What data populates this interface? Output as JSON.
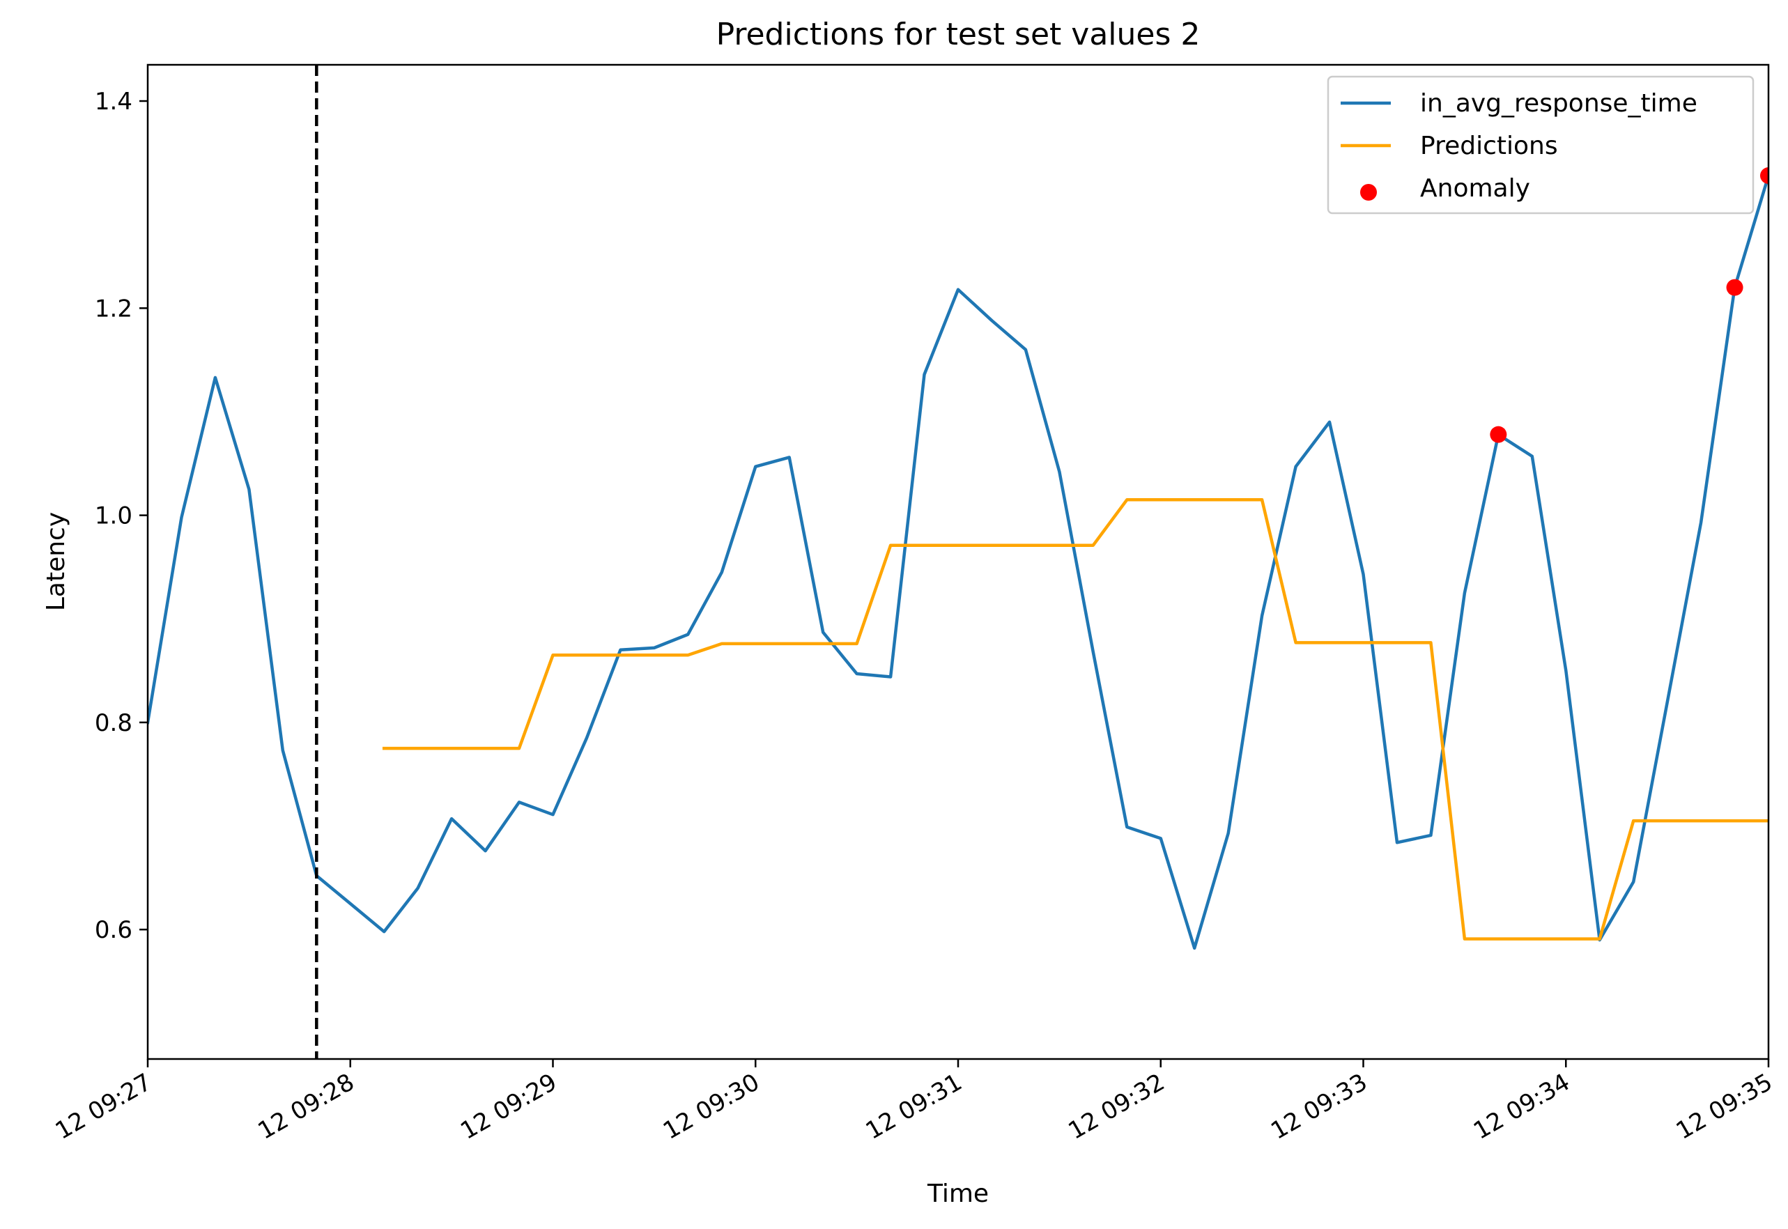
{
  "chart_data": {
    "type": "line",
    "title": "Predictions for test set values 2",
    "xlabel": "Time",
    "ylabel": "Latency",
    "x_start": "12 09:27",
    "x_end": "12 09:35",
    "xlim": [
      "12 09:27",
      "12 09:35"
    ],
    "ylim": [
      0.475,
      1.435
    ],
    "x_ticks": [
      "12 09:27",
      "12 09:28",
      "12 09:29",
      "12 09:30",
      "12 09:31",
      "12 09:32",
      "12 09:33",
      "12 09:34",
      "12 09:35"
    ],
    "y_ticks": [
      0.6,
      0.8,
      1.0,
      1.2,
      1.4
    ],
    "y_tick_labels": [
      "0.6",
      "0.8",
      "1.0",
      "1.2",
      "1.4"
    ],
    "vline": {
      "x": "12 09:27:50",
      "style": "dashed",
      "color": "#000000"
    },
    "legend": {
      "position": "top-right",
      "entries": [
        {
          "label": "in_avg_response_time",
          "kind": "line",
          "color": "#1f77b4"
        },
        {
          "label": "Predictions",
          "kind": "line",
          "color": "#ffa500"
        },
        {
          "label": "Anomaly",
          "kind": "marker",
          "color": "#ff0000"
        }
      ]
    },
    "series": [
      {
        "name": "in_avg_response_time",
        "color": "#1f77b4",
        "x": [
          "12 09:27:00",
          "12 09:27:10",
          "12 09:27:20",
          "12 09:27:30",
          "12 09:27:40",
          "12 09:27:50",
          "12 09:28:00",
          "12 09:28:10",
          "12 09:28:20",
          "12 09:28:30",
          "12 09:28:40",
          "12 09:28:50",
          "12 09:29:00",
          "12 09:29:10",
          "12 09:29:20",
          "12 09:29:30",
          "12 09:29:40",
          "12 09:29:50",
          "12 09:30:00",
          "12 09:30:10",
          "12 09:30:20",
          "12 09:30:30",
          "12 09:30:40",
          "12 09:30:50",
          "12 09:31:00",
          "12 09:31:10",
          "12 09:31:20",
          "12 09:31:30",
          "12 09:31:40",
          "12 09:31:50",
          "12 09:32:00",
          "12 09:32:10",
          "12 09:32:20",
          "12 09:32:30",
          "12 09:32:40",
          "12 09:32:50",
          "12 09:33:00",
          "12 09:33:10",
          "12 09:33:20",
          "12 09:33:30",
          "12 09:33:40",
          "12 09:33:50",
          "12 09:34:00",
          "12 09:34:10",
          "12 09:34:20",
          "12 09:34:30",
          "12 09:34:40",
          "12 09:34:50",
          "12 09:35:00"
        ],
        "y": [
          0.8,
          0.998,
          1.133,
          1.025,
          0.773,
          0.652,
          0.625,
          0.598,
          0.64,
          0.707,
          0.676,
          0.723,
          0.711,
          0.785,
          0.87,
          0.872,
          0.885,
          0.945,
          1.047,
          1.056,
          0.887,
          0.847,
          0.844,
          1.136,
          1.218,
          1.188,
          1.16,
          1.042,
          0.868,
          0.699,
          0.688,
          0.582,
          0.693,
          0.903,
          1.047,
          1.09,
          0.943,
          0.684,
          0.691,
          0.925,
          1.078,
          1.057,
          0.85,
          0.59,
          0.646,
          0.819,
          0.993,
          1.22,
          1.328
        ]
      },
      {
        "name": "Predictions",
        "color": "#ffa500",
        "x": [
          "12 09:28:10",
          "12 09:28:20",
          "12 09:28:30",
          "12 09:28:40",
          "12 09:28:50",
          "12 09:29:00",
          "12 09:29:10",
          "12 09:29:20",
          "12 09:29:30",
          "12 09:29:40",
          "12 09:29:50",
          "12 09:30:00",
          "12 09:30:10",
          "12 09:30:20",
          "12 09:30:30",
          "12 09:30:40",
          "12 09:30:50",
          "12 09:31:00",
          "12 09:31:10",
          "12 09:31:20",
          "12 09:31:30",
          "12 09:31:40",
          "12 09:31:50",
          "12 09:32:00",
          "12 09:32:10",
          "12 09:32:20",
          "12 09:32:30",
          "12 09:32:40",
          "12 09:32:50",
          "12 09:33:00",
          "12 09:33:10",
          "12 09:33:20",
          "12 09:33:30",
          "12 09:33:40",
          "12 09:33:50",
          "12 09:34:00",
          "12 09:34:10",
          "12 09:34:20",
          "12 09:34:30",
          "12 09:34:40",
          "12 09:34:50",
          "12 09:35:00"
        ],
        "y": [
          0.775,
          0.775,
          0.775,
          0.775,
          0.775,
          0.865,
          0.865,
          0.865,
          0.865,
          0.865,
          0.876,
          0.876,
          0.876,
          0.876,
          0.876,
          0.971,
          0.971,
          0.971,
          0.971,
          0.971,
          0.971,
          0.971,
          1.015,
          1.015,
          1.015,
          1.015,
          1.015,
          0.877,
          0.877,
          0.877,
          0.877,
          0.877,
          0.591,
          0.591,
          0.591,
          0.591,
          0.591,
          0.705,
          0.705,
          0.705,
          0.705,
          0.705
        ]
      },
      {
        "name": "Anomaly",
        "color": "#ff0000",
        "kind": "scatter",
        "x": [
          "12 09:33:40",
          "12 09:34:50",
          "12 09:35:00"
        ],
        "y": [
          1.078,
          1.22,
          1.328
        ]
      }
    ]
  }
}
